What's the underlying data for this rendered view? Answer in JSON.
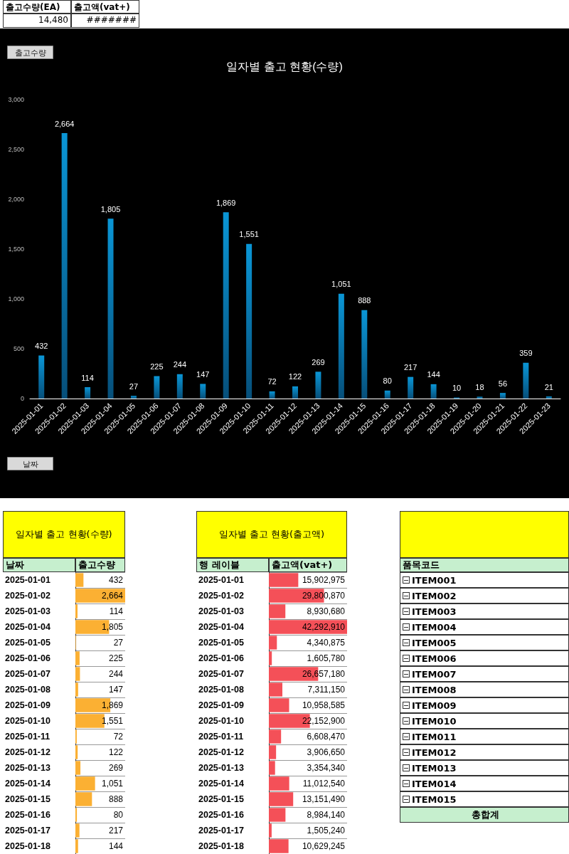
{
  "chart_data": [
    {
      "type": "other",
      "categories": [
        "출고수량(EA)",
        "출고액(vat+)"
      ],
      "value_labels": [
        "14,480",
        "#######"
      ]
    },
    {
      "type": "bar",
      "title": "일자별 출고 현황(수량)",
      "categories": [
        "2025-01-01",
        "2025-01-02",
        "2025-01-03",
        "2025-01-04",
        "2025-01-05",
        "2025-01-06",
        "2025-01-07",
        "2025-01-08",
        "2025-01-09",
        "2025-01-10",
        "2025-01-11",
        "2025-01-12",
        "2025-01-13",
        "2025-01-14",
        "2025-01-15",
        "2025-01-16",
        "2025-01-17",
        "2025-01-18",
        "2025-01-19",
        "2025-01-20",
        "2025-01-21",
        "2025-01-22",
        "2025-01-23"
      ],
      "values": [
        432,
        2664,
        114,
        1805,
        27,
        225,
        244,
        147,
        1869,
        1551,
        72,
        122,
        269,
        1051,
        888,
        80,
        217,
        144,
        10,
        18,
        56,
        359,
        21
      ],
      "value_labels": [
        "432",
        "2,664",
        "114",
        "1,805",
        "27",
        "225",
        "244",
        "147",
        "1,869",
        "1,551",
        "72",
        "122",
        "269",
        "1,051",
        "888",
        "80",
        "217",
        "144",
        "10",
        "18",
        "56",
        "359",
        "21"
      ],
      "color": "#0a96d6",
      "ylim": [
        0,
        3000
      ],
      "yticks": [
        0,
        {
          "value": 500,
          "label": "500"
        },
        {
          "value": 1000,
          "label": "1,000"
        },
        {
          "value": 1500,
          "label": "1,500"
        },
        {
          "value": 2000,
          "label": "2,000"
        },
        {
          "value": 2500,
          "label": "2,500"
        },
        {
          "value": 3000,
          "label": "3,000"
        }
      ],
      "grid": false,
      "annotations": [
        "출고수량",
        "날짜"
      ]
    },
    {
      "type": "bar",
      "orientation": "horizontal",
      "title": "일자별 출고 현황(수량)",
      "ylabel": "날짜",
      "xlabel": "출고수량",
      "categories": [
        "2025-01-01",
        "2025-01-02",
        "2025-01-03",
        "2025-01-04",
        "2025-01-05",
        "2025-01-06",
        "2025-01-07",
        "2025-01-08",
        "2025-01-09",
        "2025-01-10",
        "2025-01-11",
        "2025-01-12",
        "2025-01-13",
        "2025-01-14",
        "2025-01-15",
        "2025-01-16",
        "2025-01-17",
        "2025-01-18"
      ],
      "values": [
        432,
        2664,
        114,
        1805,
        27,
        225,
        244,
        147,
        1869,
        1551,
        72,
        122,
        269,
        1051,
        888,
        80,
        217,
        144
      ],
      "value_labels": [
        "432",
        "2,664",
        "114",
        "1,805",
        "27",
        "225",
        "244",
        "147",
        "1,869",
        "1,551",
        "72",
        "122",
        "269",
        "1,051",
        "888",
        "80",
        "217",
        "144"
      ],
      "color": "#fbb033"
    },
    {
      "type": "bar",
      "orientation": "horizontal",
      "title": "일자별 출고 현황(출고액)",
      "ylabel": "행 레이블",
      "xlabel": "출고액(vat+)",
      "categories": [
        "2025-01-01",
        "2025-01-02",
        "2025-01-03",
        "2025-01-04",
        "2025-01-05",
        "2025-01-06",
        "2025-01-07",
        "2025-01-08",
        "2025-01-09",
        "2025-01-10",
        "2025-01-11",
        "2025-01-12",
        "2025-01-13",
        "2025-01-14",
        "2025-01-15",
        "2025-01-16",
        "2025-01-17",
        "2025-01-18"
      ],
      "values": [
        15902975,
        29800870,
        8930680,
        42292910,
        4340875,
        1605780,
        26657180,
        7311150,
        10958585,
        22152900,
        6608470,
        3906650,
        3354340,
        11012540,
        13151490,
        8984140,
        1505240,
        10629245
      ],
      "value_labels": [
        "15,902,975",
        "29,800,870",
        "8,930,680",
        "42,292,910",
        "4,340,875",
        "1,605,780",
        "26,657,180",
        "7,311,150",
        "10,958,585",
        "22,152,900",
        "6,608,470",
        "3,906,650",
        "3,354,340",
        "11,012,540",
        "13,151,490",
        "8,984,140",
        "1,505,240",
        "10,629,245"
      ],
      "color": "#f45058"
    },
    {
      "type": "other",
      "xlabel": "품목코드",
      "categories": [
        "ITEM001",
        "ITEM002",
        "ITEM003",
        "ITEM004",
        "ITEM005",
        "ITEM006",
        "ITEM007",
        "ITEM008",
        "ITEM009",
        "ITEM010",
        "ITEM011",
        "ITEM012",
        "ITEM013",
        "ITEM014",
        "ITEM015"
      ],
      "annotations": [
        "총합계"
      ]
    }
  ]
}
